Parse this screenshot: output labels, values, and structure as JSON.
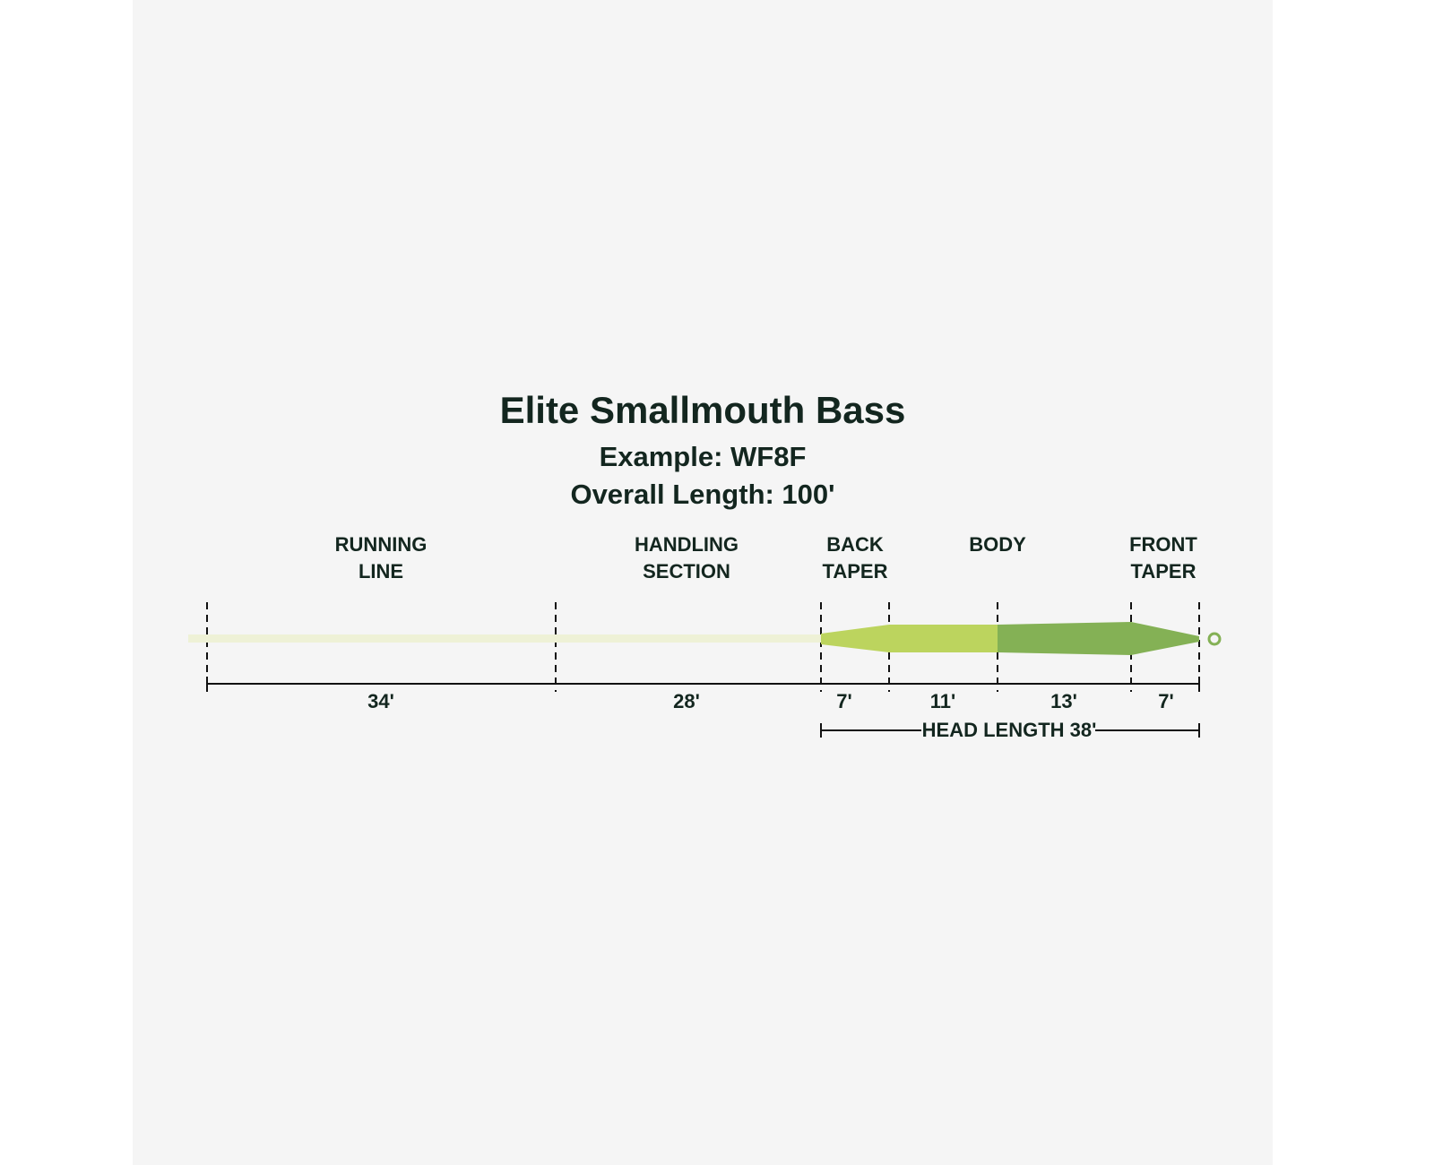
{
  "header": {
    "title": "Elite Smallmouth Bass",
    "subtitle_lines": [
      "Example: WF8F",
      "Overall Length: 100'"
    ]
  },
  "sections": [
    {
      "label_lines": [
        "RUNNING",
        "LINE"
      ],
      "length": "34'"
    },
    {
      "label_lines": [
        "HANDLING",
        "SECTION"
      ],
      "length": "28'"
    },
    {
      "label_lines": [
        "BACK",
        "TAPER"
      ],
      "length": "7'"
    },
    {
      "label_lines": [
        "BODY"
      ],
      "length": "11'"
    },
    {
      "label_lines": [],
      "length": "13'"
    },
    {
      "label_lines": [
        "FRONT",
        "TAPER"
      ],
      "length": "7'"
    }
  ],
  "head_length": "HEAD LENGTH 38'"
}
